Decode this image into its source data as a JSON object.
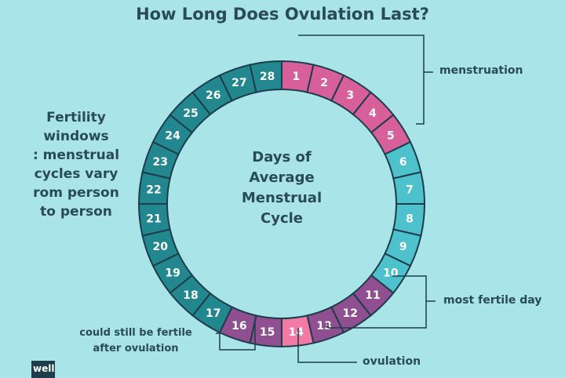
{
  "title": "How Long Does Ovulation Last?",
  "side_note": "Fertility\nwindows\n: menstrual\ncycles vary\nrom person\nto person",
  "center_text": [
    "Days of",
    "Average",
    "Menstrual",
    "Cycle"
  ],
  "days": [
    {
      "label": "1",
      "phase": "menstruation"
    },
    {
      "label": "2",
      "phase": "menstruation"
    },
    {
      "label": "3",
      "phase": "menstruation"
    },
    {
      "label": "4",
      "phase": "menstruation"
    },
    {
      "label": "5",
      "phase": "menstruation"
    },
    {
      "label": "6",
      "phase": "light"
    },
    {
      "label": "7",
      "phase": "light"
    },
    {
      "label": "8",
      "phase": "light"
    },
    {
      "label": "9",
      "phase": "light"
    },
    {
      "label": "10",
      "phase": "light"
    },
    {
      "label": "11",
      "phase": "fertile"
    },
    {
      "label": "12",
      "phase": "fertile"
    },
    {
      "label": "13",
      "phase": "fertile"
    },
    {
      "label": "14",
      "phase": "ovulation"
    },
    {
      "label": "15",
      "phase": "fertile"
    },
    {
      "label": "16",
      "phase": "fertile"
    },
    {
      "label": "17",
      "phase": "dark"
    },
    {
      "label": "18",
      "phase": "dark"
    },
    {
      "label": "19",
      "phase": "dark"
    },
    {
      "label": "20",
      "phase": "dark"
    },
    {
      "label": "21",
      "phase": "dark"
    },
    {
      "label": "22",
      "phase": "dark"
    },
    {
      "label": "23",
      "phase": "dark"
    },
    {
      "label": "24",
      "phase": "dark"
    },
    {
      "label": "25",
      "phase": "dark"
    },
    {
      "label": "26",
      "phase": "dark"
    },
    {
      "label": "27",
      "phase": "dark"
    },
    {
      "label": "28",
      "phase": "dark"
    }
  ],
  "colors": {
    "menstruation": "#d8609a",
    "ovulation": "#f47aa6",
    "fertile": "#8f4f90",
    "light": "#4dc1cc",
    "dark": "#23878f",
    "stroke": "#1d3d4a",
    "text": "#2a4a5a"
  },
  "labels": {
    "menstruation": "menstruation",
    "most_fertile": "most fertile day",
    "ovulation": "ovulation",
    "after_ovulation": "could still be fertile\nafter ovulation"
  },
  "logo": "well"
}
